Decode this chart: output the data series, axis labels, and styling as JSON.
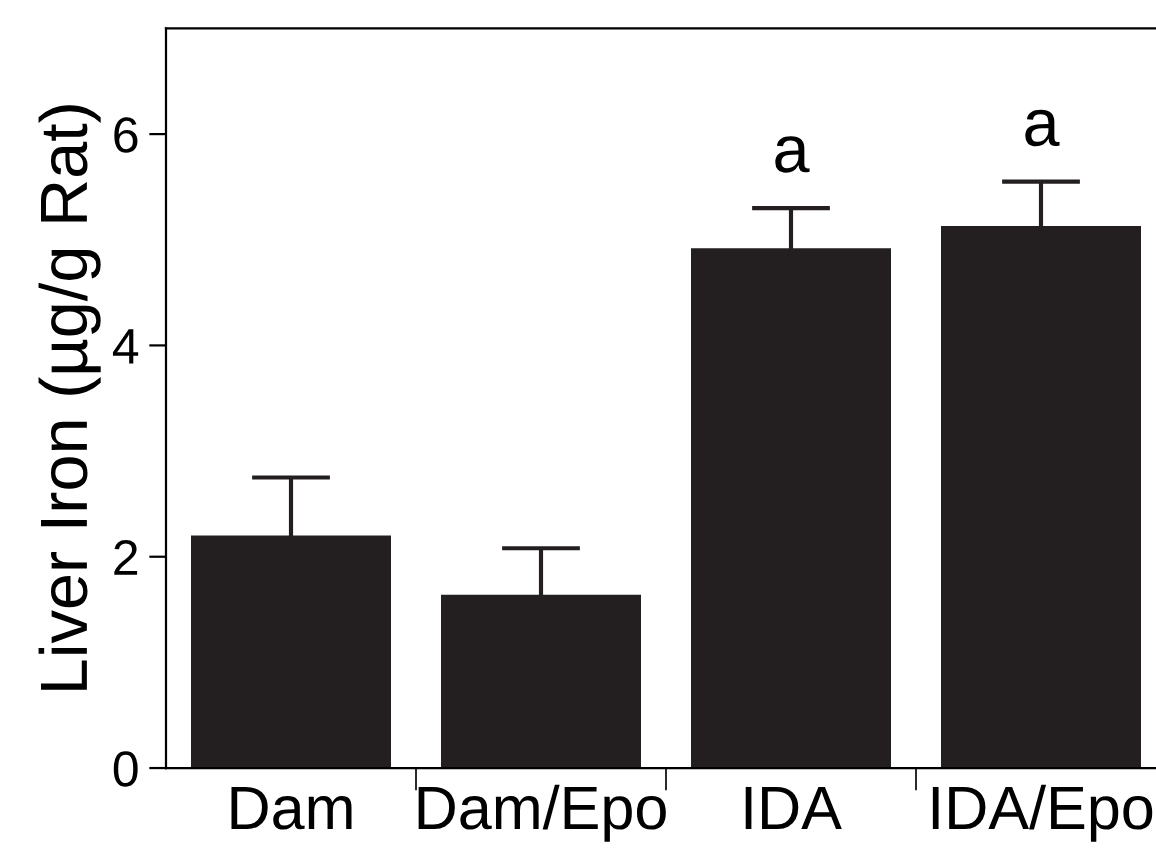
{
  "chart_data": {
    "type": "bar",
    "ylabel": "Liver Iron (µg/g Rat)",
    "categories": [
      "Dam",
      "Dam/Epo",
      "IDA",
      "IDA/Epo"
    ],
    "values": [
      2.2,
      1.64,
      4.92,
      5.13
    ],
    "errors": [
      0.55,
      0.44,
      0.38,
      0.42
    ],
    "color": "#231f20",
    "ylim": [
      0,
      7
    ],
    "yticks": [
      0,
      2,
      4,
      6
    ],
    "grid": false,
    "legend": false,
    "annotations": [
      "a",
      "a"
    ]
  }
}
